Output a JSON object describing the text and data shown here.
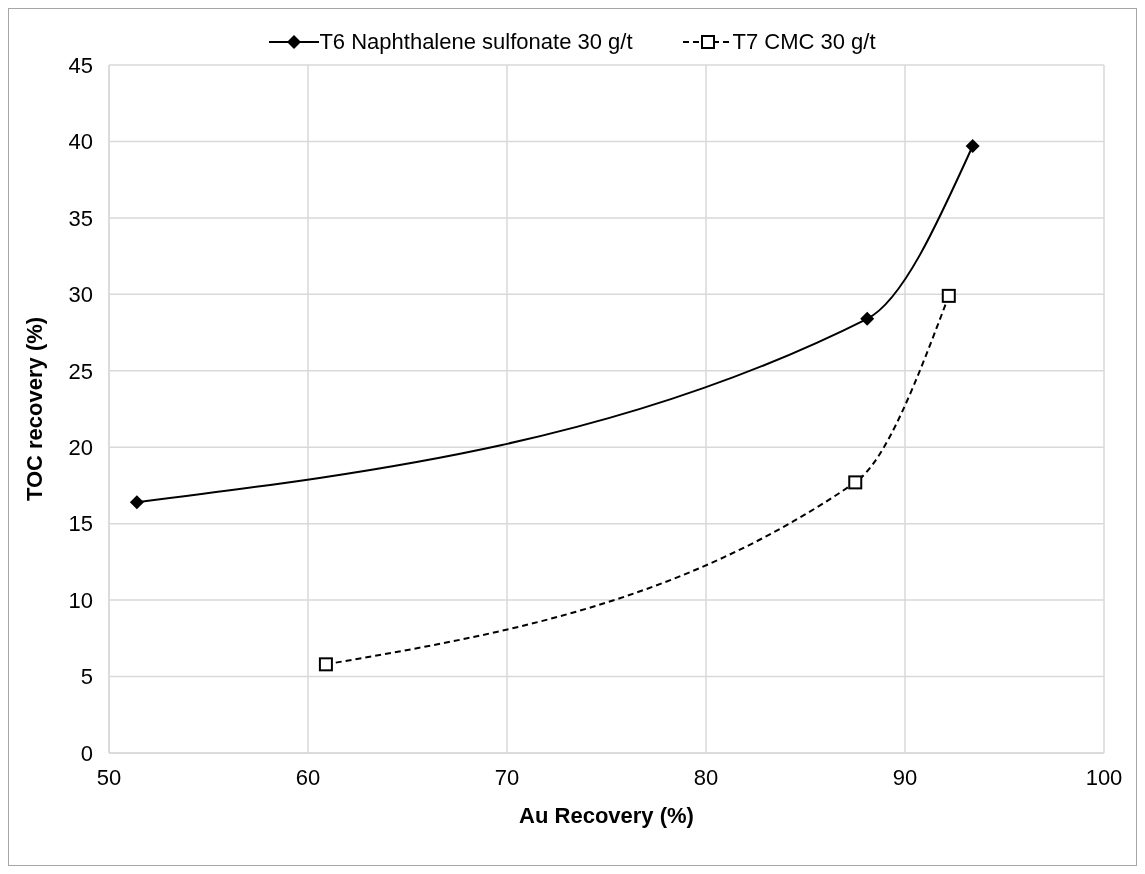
{
  "chart_data": {
    "type": "line",
    "xlabel": "Au Recovery (%)",
    "ylabel": "TOC recovery (%)",
    "xlim": [
      50,
      100
    ],
    "xticks": [
      50,
      60,
      70,
      80,
      90,
      100
    ],
    "ylim": [
      0,
      45
    ],
    "yticks": [
      0,
      5,
      10,
      15,
      20,
      25,
      30,
      35,
      40,
      45
    ],
    "grid": true,
    "legend": "top",
    "series": [
      {
        "name": "T6 Naphthalene sulfonate 30 g/t",
        "color": "#000000",
        "x": [
          51.4,
          88.1,
          93.4
        ],
        "values": [
          16.4,
          28.4,
          39.7
        ],
        "marker": "diamond",
        "line_style": "solid"
      },
      {
        "name": "T7 CMC 30 g/t",
        "color": "#000000",
        "x": [
          60.9,
          87.5,
          92.2
        ],
        "values": [
          5.8,
          17.7,
          29.9
        ],
        "marker": "square",
        "line_style": "dashed"
      }
    ]
  }
}
